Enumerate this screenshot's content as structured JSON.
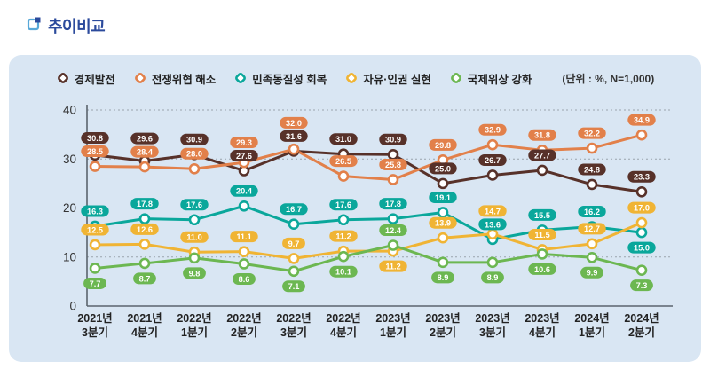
{
  "page": {
    "title": "추이비교"
  },
  "chart_data": {
    "type": "line",
    "title": "추이비교",
    "unit": "(단위 : %, N=1,000)",
    "categories": [
      {
        "line1": "2021년",
        "line2": "3분기"
      },
      {
        "line1": "2021년",
        "line2": "4분기"
      },
      {
        "line1": "2022년",
        "line2": "1분기"
      },
      {
        "line1": "2022년",
        "line2": "2분기"
      },
      {
        "line1": "2022년",
        "line2": "3분기"
      },
      {
        "line1": "2022년",
        "line2": "4분기"
      },
      {
        "line1": "2023년",
        "line2": "1분기"
      },
      {
        "line1": "2023년",
        "line2": "2분기"
      },
      {
        "line1": "2023년",
        "line2": "3분기"
      },
      {
        "line1": "2023년",
        "line2": "4분기"
      },
      {
        "line1": "2024년",
        "line2": "1분기"
      },
      {
        "line1": "2024년",
        "line2": "2분기"
      }
    ],
    "series": [
      {
        "name": "경제발전",
        "color": "#573129",
        "values": [
          30.8,
          29.6,
          30.9,
          27.6,
          31.6,
          31.0,
          30.9,
          25.0,
          26.7,
          27.7,
          24.8,
          23.3
        ]
      },
      {
        "name": "전쟁위협 해소",
        "color": "#e2804a",
        "values": [
          28.5,
          28.4,
          28.0,
          29.3,
          32.0,
          26.5,
          25.8,
          29.8,
          32.9,
          31.8,
          32.2,
          34.9
        ]
      },
      {
        "name": "민족동질성 회복",
        "color": "#0aa79b",
        "values": [
          16.3,
          17.8,
          17.6,
          20.4,
          16.7,
          17.6,
          17.8,
          19.1,
          13.6,
          15.5,
          16.2,
          15.0
        ]
      },
      {
        "name": "자유·인권 실현",
        "color": "#f0b434",
        "values": [
          12.5,
          12.6,
          11.0,
          11.1,
          9.7,
          11.2,
          11.2,
          13.9,
          14.7,
          11.5,
          12.7,
          17.0
        ]
      },
      {
        "name": "국제위상 강화",
        "color": "#6cb751",
        "values": [
          7.7,
          8.7,
          9.8,
          8.6,
          7.1,
          10.1,
          12.4,
          8.9,
          8.9,
          10.6,
          9.9,
          7.3
        ]
      }
    ],
    "ylim": [
      0,
      40
    ],
    "yticks": [
      0,
      10,
      20,
      30,
      40
    ],
    "grid": "horizontal-dashed",
    "legend_position": "top"
  }
}
